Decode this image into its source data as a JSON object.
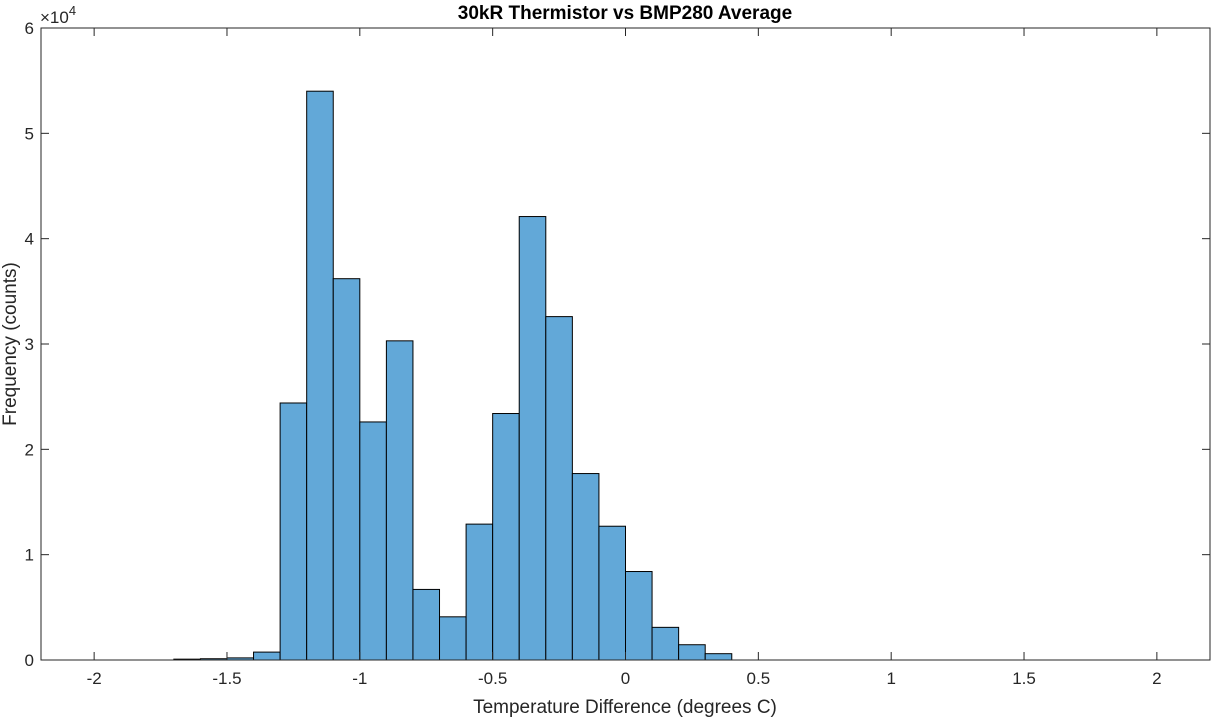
{
  "chart_data": {
    "type": "bar",
    "title": "30kR Thermistor vs BMP280 Average",
    "xlabel": "Temperature Difference (degrees C)",
    "ylabel": "Frequency (counts)",
    "xlim": [
      -2.2,
      2.2
    ],
    "ylim": [
      0,
      60000
    ],
    "xticks": [
      -2,
      -1.5,
      -1,
      -0.5,
      0,
      0.5,
      1,
      1.5,
      2
    ],
    "xtick_labels": [
      "-2",
      "-1.5",
      "-1",
      "-0.5",
      "0",
      "0.5",
      "1",
      "1.5",
      "2"
    ],
    "yticks": [
      0,
      10000,
      20000,
      30000,
      40000,
      50000,
      60000
    ],
    "ytick_labels": [
      "0",
      "1",
      "2",
      "3",
      "4",
      "5",
      "6"
    ],
    "y_exponent_base": "×10",
    "y_exponent_power": "4",
    "grid": false,
    "bar_color": "#62a8d8",
    "bar_edge_color": "#000000",
    "bin_width": 0.1,
    "bin_edges": [
      -1.7,
      -1.6,
      -1.5,
      -1.4,
      -1.3,
      -1.2,
      -1.1,
      -1.0,
      -0.9,
      -0.8,
      -0.7,
      -0.6,
      -0.5,
      -0.4,
      -0.3,
      -0.2,
      -0.1,
      0.0,
      0.1,
      0.2,
      0.3,
      0.4
    ],
    "values": [
      80,
      120,
      200,
      750,
      24400,
      54000,
      36200,
      22600,
      30300,
      6700,
      4100,
      12900,
      23400,
      42100,
      32600,
      17700,
      12700,
      8400,
      3100,
      1450,
      600
    ]
  }
}
